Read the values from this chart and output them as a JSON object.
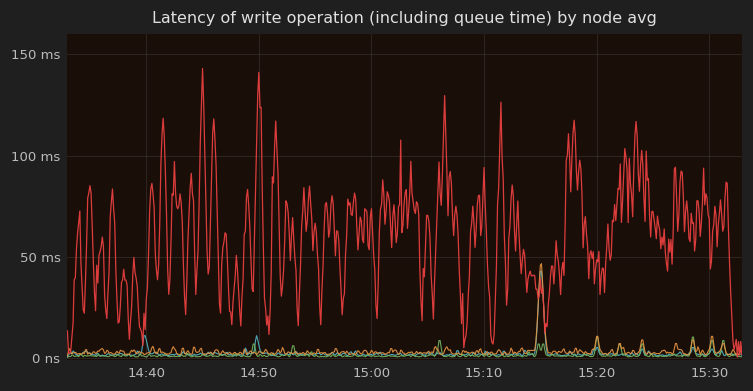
{
  "title": "Latency of write operation (including queue time) by node avg",
  "bg_color": "#1f1f1f",
  "plot_bg_color": "#1a0e08",
  "grid_color": "#555555",
  "text_color": "#bbbbbb",
  "title_color": "#e0e0e0",
  "x_tick_labels": [
    "14:40",
    "14:50",
    "15:00",
    "15:10",
    "15:20",
    "15:30"
  ],
  "y_tick_labels": [
    "0 ns",
    "50 ms",
    "100 ms",
    "150 ms"
  ],
  "y_tick_values": [
    0,
    50,
    100,
    150
  ],
  "ylim": [
    -1,
    160
  ],
  "colors": {
    "red": "#e84040",
    "orange": "#e09040",
    "green": "#70b060",
    "blue": "#50b0c0"
  },
  "n_points": 600,
  "x_tick_positions": [
    70,
    170,
    270,
    370,
    470,
    570
  ]
}
